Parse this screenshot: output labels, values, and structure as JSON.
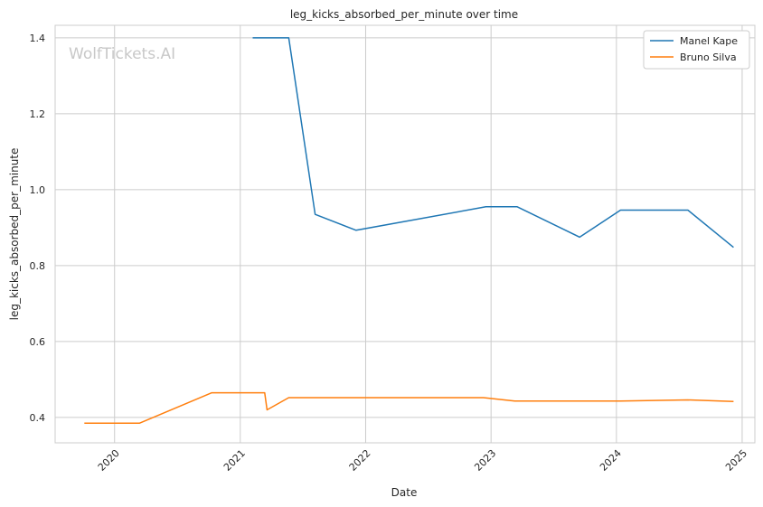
{
  "watermark": "WolfTickets.AI",
  "chart_data": {
    "type": "line",
    "title": "leg_kicks_absorbed_per_minute over time",
    "xlabel": "Date",
    "ylabel": "leg_kicks_absorbed_per_minute",
    "x_ticks": [
      "2020",
      "2021",
      "2022",
      "2023",
      "2024",
      "2025"
    ],
    "y_ticks": [
      "0.4",
      "0.6",
      "0.8",
      "1.0",
      "1.2",
      "1.4"
    ],
    "xlim": [
      "2019-07-12",
      "2025-02-07"
    ],
    "ylim": [
      0.333,
      1.433
    ],
    "grid": true,
    "legend_position": "top-right",
    "colors": {
      "Manel Kape": "#1f77b4",
      "Bruno Silva": "#ff7f0e"
    },
    "series": [
      {
        "name": "Manel Kape",
        "x": [
          "2021-02-06",
          "2021-05-22",
          "2021-08-07",
          "2021-12-04",
          "2022-12-17",
          "2023-03-18",
          "2023-09-16",
          "2024-01-13",
          "2024-07-27",
          "2024-12-07"
        ],
        "y": [
          1.4,
          1.4,
          0.935,
          0.893,
          0.955,
          0.955,
          0.875,
          0.946,
          0.946,
          0.848
        ]
      },
      {
        "name": "Bruno Silva",
        "x": [
          "2019-10-05",
          "2020-03-14",
          "2020-10-10",
          "2021-03-13",
          "2021-03-20",
          "2021-05-22",
          "2022-12-10",
          "2023-03-11",
          "2024-01-13",
          "2024-07-27",
          "2024-12-07"
        ],
        "y": [
          0.385,
          0.385,
          0.465,
          0.465,
          0.42,
          0.452,
          0.452,
          0.443,
          0.443,
          0.446,
          0.442
        ]
      }
    ]
  }
}
